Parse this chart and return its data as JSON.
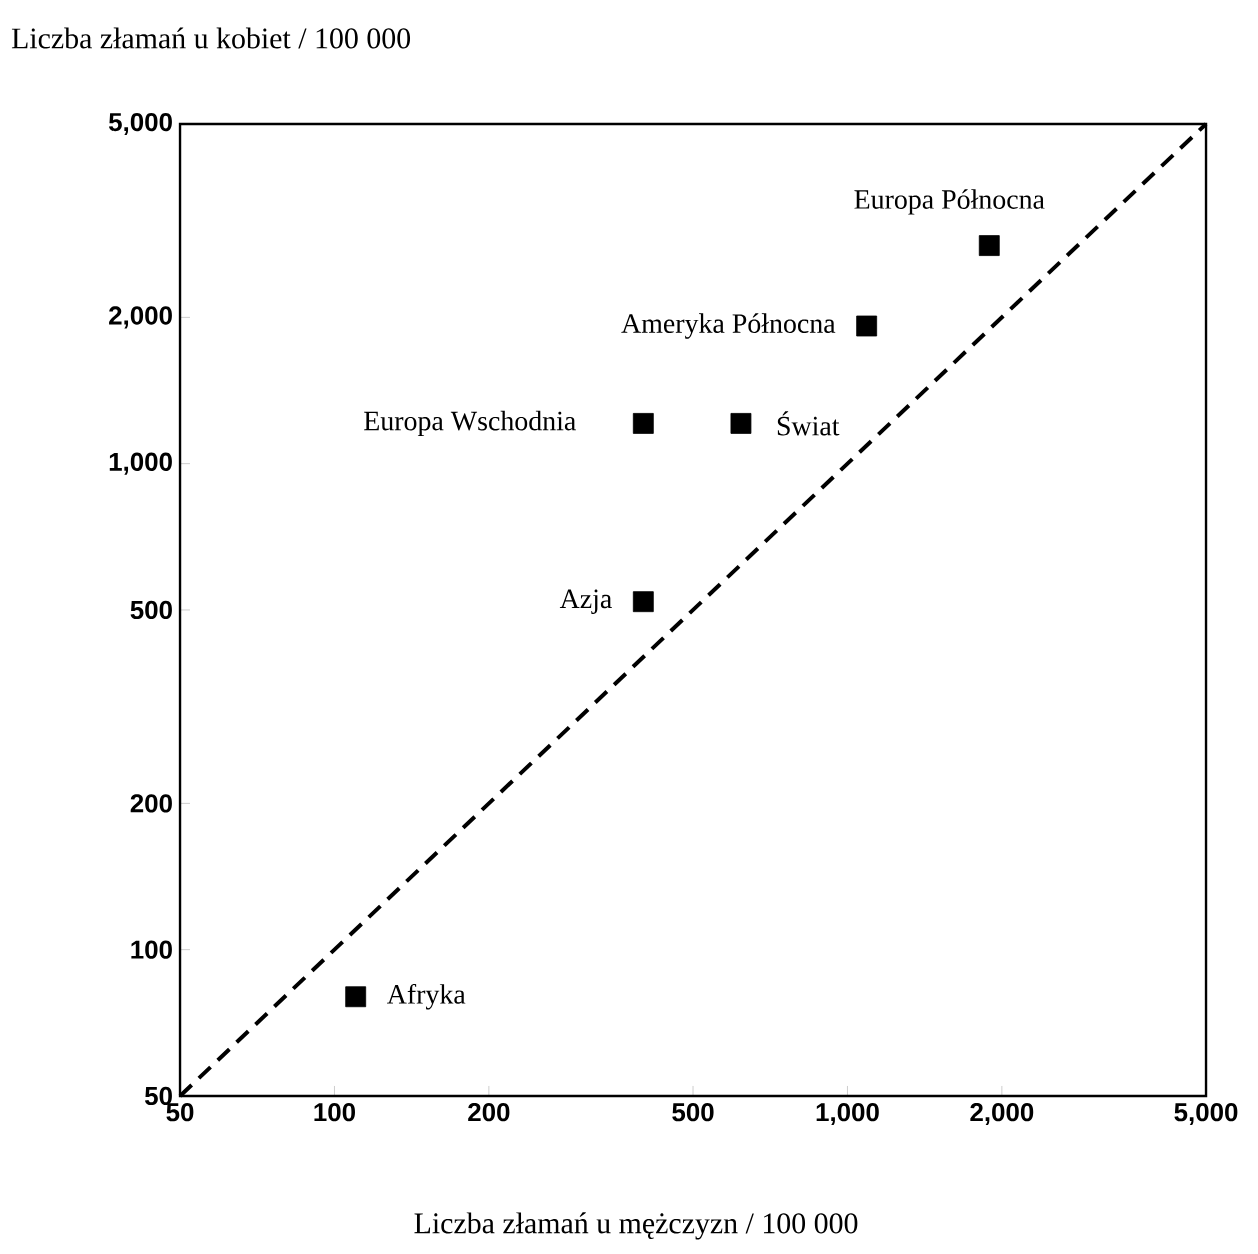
{
  "chart_data": {
    "type": "scatter",
    "xlabel": "Liczba złamań u mężczyzn / 100 000",
    "ylabel": "Liczba złamań u kobiet / 100 000",
    "log": "xy",
    "xlim": [
      50,
      5000
    ],
    "ylim": [
      50,
      5000
    ],
    "xticks": [
      50,
      100,
      200,
      500,
      {
        "value": 1000,
        "label": "1,000"
      },
      {
        "value": 2000,
        "label": "2,000"
      },
      {
        "value": 5000,
        "label": "5,000"
      }
    ],
    "yticks": [
      50,
      100,
      200,
      500,
      {
        "value": 1000,
        "label": "1,000"
      },
      {
        "value": 2000,
        "label": "2,000"
      },
      {
        "value": 5000,
        "label": "5,000"
      }
    ],
    "series": [
      {
        "type": "scatter",
        "marker": "square",
        "color": "#000000",
        "x": [
          110,
          400,
          400,
          620,
          1090,
          1890
        ],
        "values": [
          80,
          520,
          1210,
          1210,
          1920,
          2810
        ]
      },
      {
        "type": "line",
        "marker": "none",
        "line_style": "dashed",
        "color": "#000000",
        "x": [
          50,
          5000
        ],
        "values": [
          50,
          5000
        ]
      }
    ],
    "annotations": [
      {
        "text": "Afryka",
        "x": 110,
        "y": 80
      },
      {
        "text": "Azja",
        "x": 400,
        "y": 520
      },
      {
        "text": "Europa Wschodnia",
        "x": 400,
        "y": 1210
      },
      {
        "text": "Świat",
        "x": 620,
        "y": 1210
      },
      {
        "text": "Ameryka Północna",
        "x": 1090,
        "y": 1920
      },
      {
        "text": "Europa Północna",
        "x": 1890,
        "y": 2810
      }
    ]
  }
}
